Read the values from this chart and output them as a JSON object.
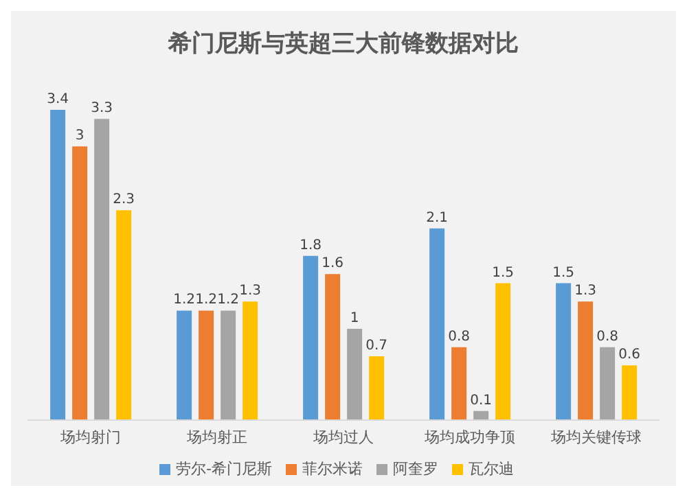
{
  "chart_data": {
    "type": "bar",
    "title": "希门尼斯与英超三大前锋数据对比",
    "categories": [
      "场均射门",
      "场均射正",
      "场均过人",
      "场均成功争顶",
      "场均关键传球"
    ],
    "series": [
      {
        "name": "劳尔-希门尼斯",
        "color": "#5b9bd5",
        "values": [
          3.4,
          1.2,
          1.8,
          2.1,
          1.5
        ]
      },
      {
        "name": "菲尔米诺",
        "color": "#ed7d31",
        "values": [
          3,
          1.2,
          1.6,
          0.8,
          1.3
        ]
      },
      {
        "name": "阿奎罗",
        "color": "#a5a5a5",
        "values": [
          3.3,
          1.2,
          1,
          0.1,
          0.8
        ]
      },
      {
        "name": "瓦尔迪",
        "color": "#ffc000",
        "values": [
          2.3,
          1.3,
          0.7,
          1.5,
          0.6
        ]
      }
    ],
    "data_labels": true,
    "grid": false,
    "legend": "bottom",
    "tick_labels": "x"
  }
}
